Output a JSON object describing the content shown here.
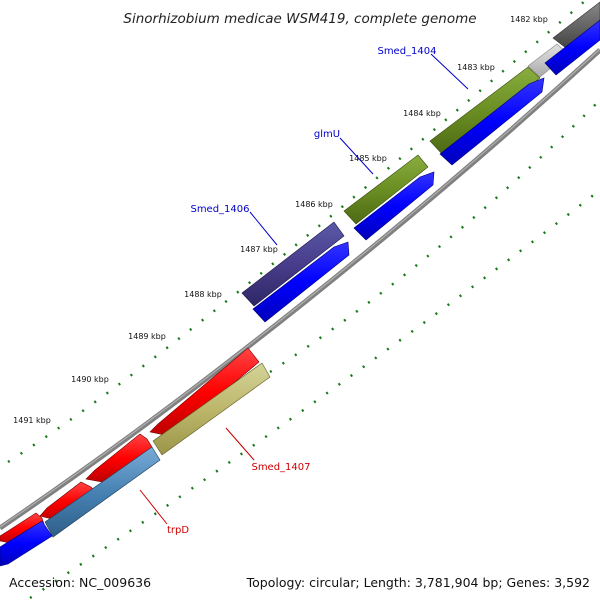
{
  "title": "Sinorhizobium medicae WSM419, complete genome",
  "footer": {
    "accession": "Accession: NC_009636",
    "summary": "Topology: circular; Length: 3,781,904 bp; Genes: 3,592"
  },
  "colors": {
    "backbone": "#808080",
    "tick": "#1a7a1a",
    "label_forward": "#0000cc",
    "label_reverse": "#cc0000",
    "cds_forward": "#0000ff",
    "cds_reverse": "#ff0000"
  },
  "ruler": {
    "labels": [
      "1482 kbp",
      "1483 kbp",
      "1484 kbp",
      "1485 kbp",
      "1486 kbp",
      "1487 kbp",
      "1488 kbp",
      "1489 kbp",
      "1490 kbp",
      "1491 kbp"
    ]
  },
  "gene_labels": [
    {
      "text": "Smed_1404",
      "strand": "forward"
    },
    {
      "text": "glmU",
      "strand": "forward"
    },
    {
      "text": "Smed_1406",
      "strand": "forward"
    },
    {
      "text": "Smed_1407",
      "strand": "reverse"
    },
    {
      "text": "trpD",
      "strand": "reverse"
    }
  ]
}
